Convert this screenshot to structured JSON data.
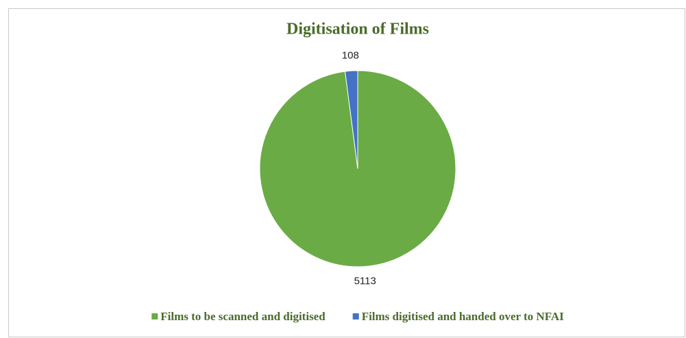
{
  "chart_data": {
    "type": "pie",
    "title": "Digitisation of Films",
    "categories": [
      "Films to be scanned and digitised",
      "Films digitised and handed over to NFAI"
    ],
    "values": [
      5113,
      108
    ],
    "colors": [
      "#6aab45",
      "#4472c4"
    ],
    "legend": "bottom"
  }
}
